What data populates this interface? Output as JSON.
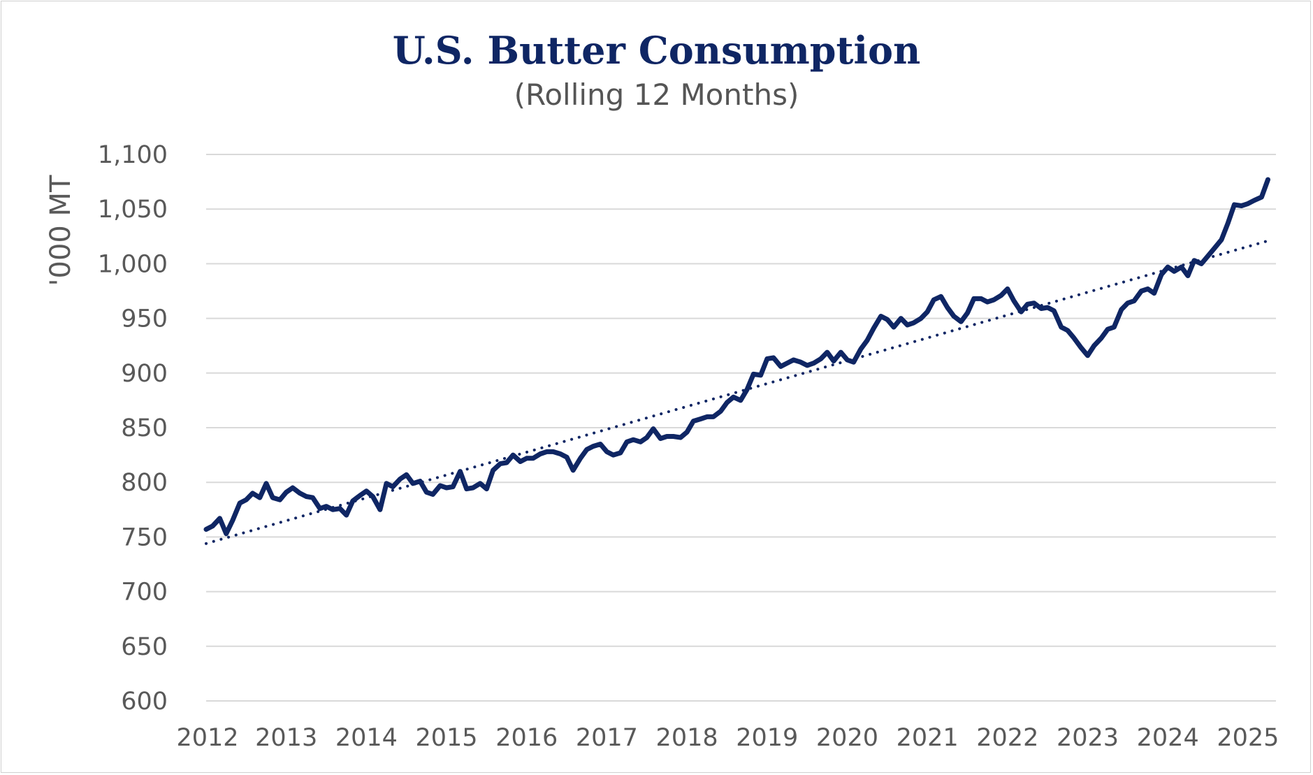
{
  "chart_data": {
    "type": "line",
    "title": "U.S. Butter Consumption",
    "subtitle": "(Rolling 12 Months)",
    "ylabel": "'000 MT",
    "xlabel": "",
    "ylim": [
      600,
      1100
    ],
    "yticks": [
      600,
      650,
      700,
      750,
      800,
      850,
      900,
      950,
      1000,
      1050,
      1100
    ],
    "ytick_labels": [
      "600",
      "650",
      "700",
      "750",
      "800",
      "850",
      "900",
      "950",
      "1,000",
      "1,050",
      "1,100"
    ],
    "xlim": [
      2012,
      2025.3
    ],
    "xticks": [
      2012,
      2013,
      2014,
      2015,
      2016,
      2017,
      2018,
      2019,
      2020,
      2021,
      2022,
      2023,
      2024,
      2025
    ],
    "xtick_labels": [
      "2012",
      "2013",
      "2014",
      "2015",
      "2016",
      "2017",
      "2018",
      "2019",
      "2020",
      "2021",
      "2022",
      "2023",
      "2024",
      "2025"
    ],
    "grid": true,
    "legend": "none",
    "colors": {
      "series": "#0f2664",
      "trend": "#0f2664",
      "grid": "#d9d9d9",
      "tick_text": "#595959",
      "title": "#0f2664"
    },
    "series": [
      {
        "style": "solid",
        "x": [
          2012.0,
          2012.08,
          2012.17,
          2012.25,
          2012.33,
          2012.42,
          2012.5,
          2012.58,
          2012.67,
          2012.75,
          2012.83,
          2012.92,
          2013.0,
          2013.08,
          2013.17,
          2013.25,
          2013.33,
          2013.42,
          2013.5,
          2013.58,
          2013.67,
          2013.75,
          2013.83,
          2013.92,
          2014.0,
          2014.08,
          2014.17,
          2014.25,
          2014.33,
          2014.42,
          2014.5,
          2014.58,
          2014.67,
          2014.75,
          2014.83,
          2014.92,
          2015.0,
          2015.08,
          2015.17,
          2015.25,
          2015.33,
          2015.42,
          2015.5,
          2015.58,
          2015.67,
          2015.75,
          2015.83,
          2015.92,
          2016.0,
          2016.08,
          2016.17,
          2016.25,
          2016.33,
          2016.42,
          2016.5,
          2016.58,
          2016.67,
          2016.75,
          2016.83,
          2016.92,
          2017.0,
          2017.08,
          2017.17,
          2017.25,
          2017.33,
          2017.42,
          2017.5,
          2017.58,
          2017.67,
          2017.75,
          2017.83,
          2017.92,
          2018.0,
          2018.08,
          2018.17,
          2018.25,
          2018.33,
          2018.42,
          2018.5,
          2018.58,
          2018.67,
          2018.75,
          2018.83,
          2018.92,
          2019.0,
          2019.08,
          2019.17,
          2019.25,
          2019.33,
          2019.42,
          2019.5,
          2019.58,
          2019.67,
          2019.75,
          2019.83,
          2019.92,
          2020.0,
          2020.08,
          2020.17,
          2020.25,
          2020.33,
          2020.42,
          2020.5,
          2020.58,
          2020.67,
          2020.75,
          2020.83,
          2020.92,
          2021.0,
          2021.08,
          2021.17,
          2021.25,
          2021.33,
          2021.42,
          2021.5,
          2021.58,
          2021.67,
          2021.75,
          2021.83,
          2021.92,
          2022.0,
          2022.08,
          2022.17,
          2022.25,
          2022.33,
          2022.42,
          2022.5,
          2022.58,
          2022.67,
          2022.75,
          2022.83,
          2022.92,
          2023.0,
          2023.08,
          2023.17,
          2023.25,
          2023.33,
          2023.42,
          2023.5,
          2023.58,
          2023.67,
          2023.75,
          2023.83,
          2023.92,
          2024.0,
          2024.08,
          2024.17,
          2024.25,
          2024.33,
          2024.42,
          2024.5,
          2024.58,
          2024.67,
          2024.75,
          2024.83,
          2024.92,
          2025.0,
          2025.08,
          2025.17,
          2025.25
        ],
        "values": [
          757,
          760,
          767,
          753,
          765,
          781,
          784,
          790,
          786,
          799,
          786,
          784,
          791,
          795,
          790,
          787,
          786,
          776,
          778,
          775,
          776,
          770,
          783,
          788,
          792,
          787,
          775,
          799,
          796,
          803,
          807,
          799,
          801,
          791,
          789,
          797,
          795,
          796,
          810,
          794,
          795,
          799,
          794,
          811,
          817,
          818,
          825,
          819,
          822,
          822,
          826,
          828,
          828,
          826,
          823,
          811,
          822,
          830,
          833,
          835,
          828,
          825,
          827,
          837,
          839,
          837,
          841,
          849,
          840,
          842,
          842,
          841,
          846,
          856,
          858,
          860,
          860,
          865,
          873,
          878,
          875,
          885,
          899,
          898,
          913,
          914,
          906,
          909,
          912,
          910,
          907,
          909,
          913,
          919,
          911,
          919,
          912,
          910,
          922,
          930,
          941,
          952,
          949,
          942,
          950,
          944,
          946,
          950,
          956,
          967,
          970,
          960,
          952,
          947,
          955,
          968,
          968,
          965,
          967,
          971,
          977,
          966,
          956,
          963,
          964,
          959,
          960,
          957,
          942,
          939,
          932,
          923,
          916,
          925,
          932,
          940,
          942,
          958,
          964,
          966,
          975,
          977,
          973,
          990,
          997,
          993,
          997,
          989,
          1003,
          1000,
          1007,
          1014,
          1022,
          1037,
          1054,
          1053,
          1055,
          1058,
          1061,
          1077
        ]
      },
      {
        "style": "dotted",
        "x": [
          2012.0,
          2025.3
        ],
        "values": [
          744,
          1022
        ]
      }
    ]
  }
}
